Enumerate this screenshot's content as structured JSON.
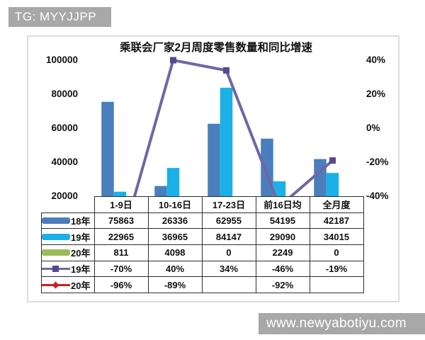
{
  "watermarks": {
    "top": "TG: MYYJJPP",
    "bottom": "www.newyabotiyu.com"
  },
  "chart_data": {
    "type": "combo_bar_line",
    "title": "乘联会厂家2月周度零售数量和同比增速",
    "categories": [
      "1-9日",
      "10-16日",
      "17-23日",
      "前16日均",
      "全月度"
    ],
    "bar_series": [
      {
        "name": "18年",
        "color": "#4a7ebc",
        "values": [
          75863,
          26336,
          62955,
          54195,
          42187
        ]
      },
      {
        "name": "19年",
        "color": "#1cb0e8",
        "values": [
          22965,
          36965,
          84147,
          29090,
          34015
        ]
      },
      {
        "name": "20年",
        "color": "#9bbb59",
        "values": [
          811,
          4098,
          0,
          2249,
          0
        ]
      }
    ],
    "line_series": [
      {
        "name": "19年",
        "color": "#7265a5",
        "marker": "square",
        "marker_color": "#57498f",
        "values_pct": [
          -70,
          40,
          34,
          -46,
          -19
        ]
      },
      {
        "name": "20年",
        "color": "#cc2020",
        "marker": "diamond",
        "marker_color": "#cc2020",
        "values_pct": [
          -96,
          -89,
          null,
          -92,
          null
        ]
      }
    ],
    "left_axis": {
      "label_ticks": [
        "100000",
        "80000",
        "60000",
        "40000",
        "20000"
      ],
      "visible_min": 20000,
      "max": 100000
    },
    "right_axis": {
      "label_ticks": [
        "40%",
        "20%",
        "0%",
        "-20%",
        "-40%"
      ],
      "visible_min_pct": -40,
      "max_pct": 40
    },
    "grid": false,
    "legend_position": "data-table-left-column",
    "data_table_shown": true
  }
}
